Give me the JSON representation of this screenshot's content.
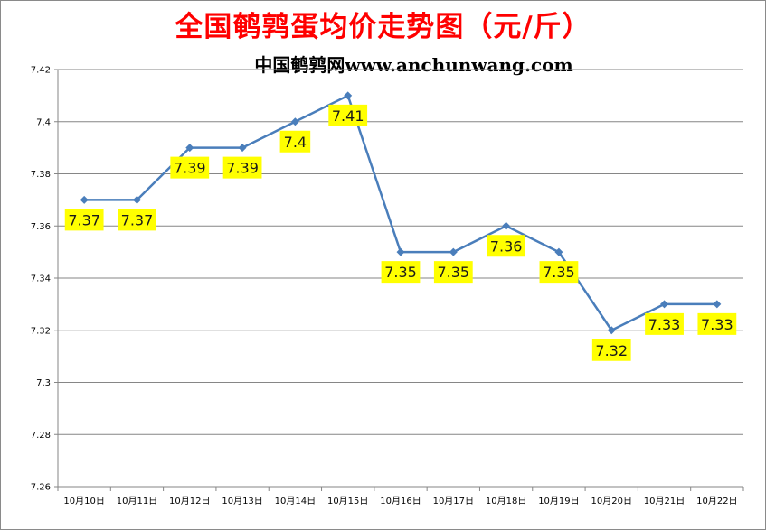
{
  "chart_data": {
    "type": "line",
    "title": "全国鹌鹑蛋均价走势图（元/斤）",
    "subtitle": "中国鹌鹑网www.anchunwang.com",
    "categories": [
      "10月10日",
      "10月11日",
      "10月12日",
      "10月13日",
      "10月14日",
      "10月15日",
      "10月16日",
      "10月17日",
      "10月18日",
      "10月19日",
      "10月20日",
      "10月21日",
      "10月22日"
    ],
    "series": [
      {
        "values": [
          7.37,
          7.37,
          7.39,
          7.39,
          7.4,
          7.41,
          7.35,
          7.35,
          7.36,
          7.35,
          7.32,
          7.33,
          7.33
        ],
        "labels": [
          "7.37",
          "7.37",
          "7.39",
          "7.39",
          "7.4",
          "7.41",
          "7.35",
          "7.35",
          "7.36",
          "7.35",
          "7.32",
          "7.33",
          "7.33"
        ]
      }
    ],
    "yticks": [
      "7.26",
      "7.28",
      "7.3",
      "7.32",
      "7.34",
      "7.36",
      "7.38",
      "7.4",
      "7.42"
    ],
    "ylim": [
      7.26,
      7.42
    ],
    "grid": true,
    "legend": "none",
    "colors": {
      "line": "#4a7ebb",
      "label_bg": "#ffff00",
      "title": "#ff0000"
    }
  }
}
